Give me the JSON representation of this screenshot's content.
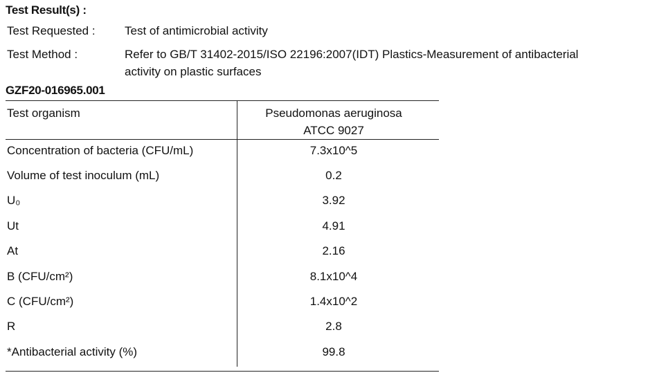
{
  "section_title": "Test Result(s) :",
  "info": {
    "requested_label": "Test Requested :",
    "requested_value": "Test of antimicrobial activity",
    "method_label": "Test Method :",
    "method_line1": "Refer to GB/T 31402-2015/ISO 22196:2007(IDT) Plastics-Measurement of antibacterial",
    "method_line2": "activity on plastic surfaces"
  },
  "report_id": "GZF20-016965.001",
  "table": {
    "header_label": "Test organism",
    "header_value_line1": "Pseudomonas aeruginosa",
    "header_value_line2": "ATCC 9027",
    "rows": [
      {
        "label": "Concentration of bacteria (CFU/mL)",
        "value": "7.3x10^5"
      },
      {
        "label": "Volume of test inoculum (mL)",
        "value": "0.2"
      },
      {
        "label": "U₀",
        "value": "3.92"
      },
      {
        "label": "Ut",
        "value": "4.91"
      },
      {
        "label": "At",
        "value": "2.16"
      },
      {
        "label": "B (CFU/cm²)",
        "value": "8.1x10^4"
      },
      {
        "label": "C (CFU/cm²)",
        "value": "1.4x10^2"
      },
      {
        "label": "R",
        "value": "2.8"
      },
      {
        "label": "*Antibacterial activity (%)",
        "value": "99.8"
      }
    ]
  }
}
